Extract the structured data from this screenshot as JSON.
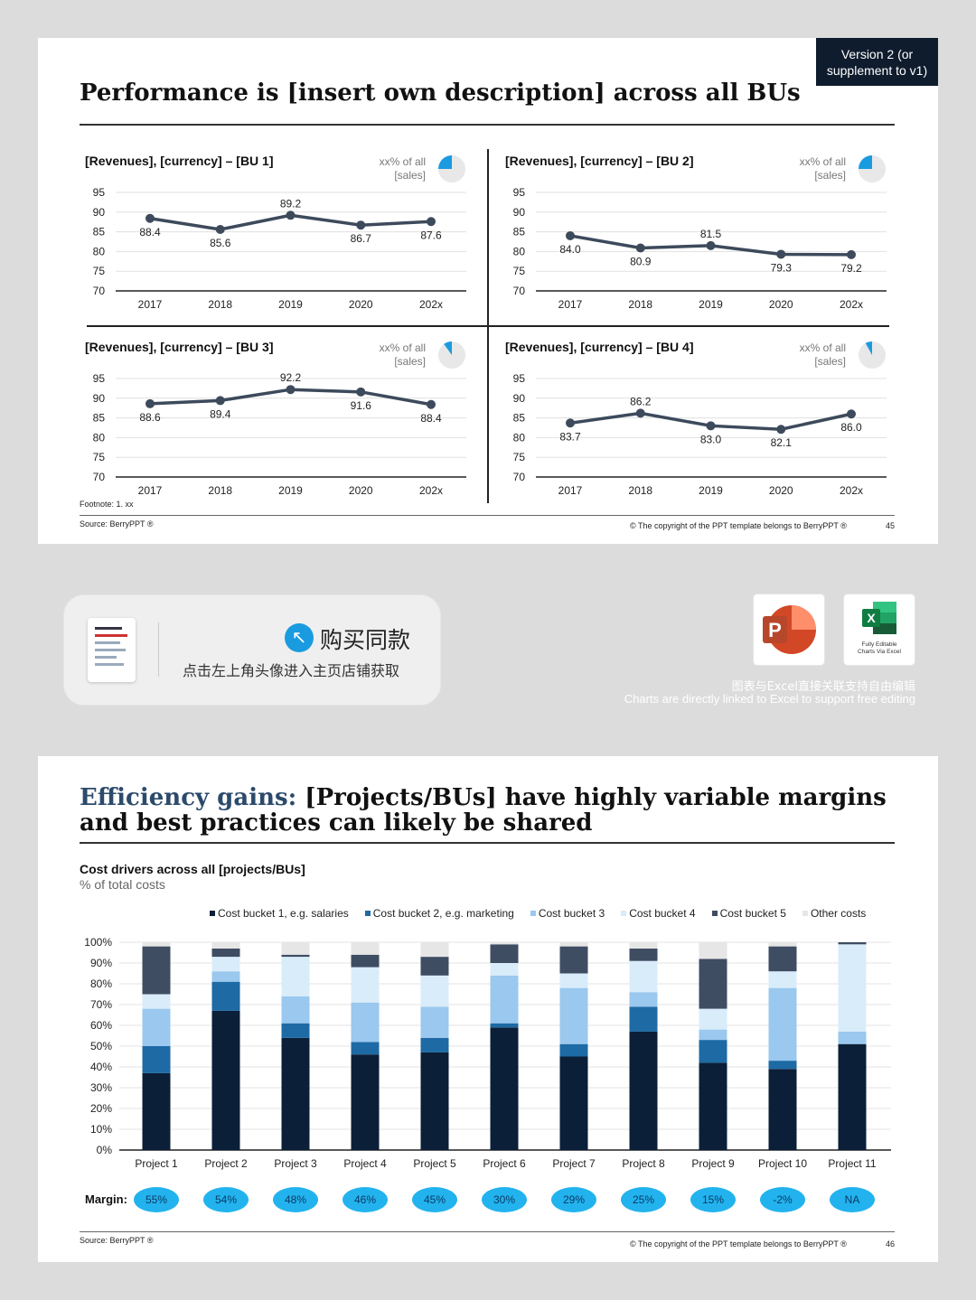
{
  "slide1": {
    "title": "Performance is [insert own description] across all BUs",
    "version_badge": "Version 2 (or supplement to v1)",
    "footnote": "Footnote: 1. xx",
    "source": "Source: BerryPPT ®",
    "copyright": "© The copyright of the PPT template belongs to BerryPPT ®",
    "page_number": "45",
    "panels": [
      {
        "title": "[Revenues], [currency] – [BU 1]",
        "share_line1": "xx% of all",
        "share_line2": "[sales]",
        "share_fraction": 0.25
      },
      {
        "title": "[Revenues], [currency] – [BU 2]",
        "share_line1": "xx% of all",
        "share_line2": "[sales]",
        "share_fraction": 0.25
      },
      {
        "title": "[Revenues], [currency] – [BU 3]",
        "share_line1": "xx% of all",
        "share_line2": "[sales]",
        "share_fraction": 0.1
      },
      {
        "title": "[Revenues], [currency] – [BU 4]",
        "share_line1": "xx% of all",
        "share_line2": "[sales]",
        "share_fraction": 0.08
      }
    ]
  },
  "promo": {
    "buy_title": "购买同款",
    "buy_icon": "arrow-up-left-icon",
    "buy_subtitle": "点击左上角头像进入主页店铺获取",
    "ppt_icon_letter": "P",
    "excel_icon_letter": "X",
    "excel_caption_line1": "Fully Editable",
    "excel_caption_line2": "Charts Via Excel",
    "caption_cn": "图表与Excel直接关联支持自由编辑",
    "caption_en": "Charts are directly linked to Excel to support free editing"
  },
  "slide2": {
    "title_highlight": "Efficiency gains:",
    "title_rest": " [Projects/BUs] have highly variable margins and best practices can likely be shared",
    "subtitle": "Cost drivers across all [projects/BUs]",
    "subtitle_unit": "% of total costs",
    "margin_label": "Margin:",
    "margins": [
      "55%",
      "54%",
      "48%",
      "46%",
      "45%",
      "30%",
      "29%",
      "25%",
      "15%",
      "-2%",
      "NA"
    ],
    "source": "Source: BerryPPT ®",
    "copyright": "© The copyright of the PPT template belongs to BerryPPT ®",
    "page_number": "46"
  },
  "colors": {
    "line": "#3d4a5c",
    "dark_navy": "#0b1f38",
    "mid_blue": "#1d6aa5",
    "light_blue": "#9ac8ee",
    "pale_blue": "#d9ecfa",
    "slate": "#3f4d63",
    "light_grey": "#e6e6e6",
    "pie_blue": "#1a9be0",
    "bubble": "#22b3ee",
    "title_blue": "#2c4a6b"
  },
  "chart_data": [
    {
      "type": "line",
      "title": "[Revenues], [currency] – [BU 1]",
      "categories": [
        "2017",
        "2018",
        "2019",
        "2020",
        "202x"
      ],
      "values": [
        88.4,
        85.6,
        89.2,
        86.7,
        87.6
      ],
      "labels": [
        "88.4",
        "85.6",
        "89.2",
        "86.7",
        "87.6"
      ],
      "yticks": [
        "95",
        "90",
        "85",
        "80",
        "75",
        "70"
      ],
      "ylim": [
        70,
        95
      ]
    },
    {
      "type": "line",
      "title": "[Revenues], [currency] – [BU 2]",
      "categories": [
        "2017",
        "2018",
        "2019",
        "2020",
        "202x"
      ],
      "values": [
        84.0,
        80.9,
        81.5,
        79.3,
        79.2
      ],
      "labels": [
        "84.0",
        "80.9",
        "81.5",
        "79.3",
        "79.2"
      ],
      "yticks": [
        "95",
        "90",
        "85",
        "80",
        "75",
        "70"
      ],
      "ylim": [
        70,
        95
      ]
    },
    {
      "type": "line",
      "title": "[Revenues], [currency] – [BU 3]",
      "categories": [
        "2017",
        "2018",
        "2019",
        "2020",
        "202x"
      ],
      "values": [
        88.6,
        89.4,
        92.2,
        91.6,
        88.4
      ],
      "labels": [
        "88.6",
        "89.4",
        "92.2",
        "91.6",
        "88.4"
      ],
      "yticks": [
        "95",
        "90",
        "85",
        "80",
        "75",
        "70"
      ],
      "ylim": [
        70,
        95
      ]
    },
    {
      "type": "line",
      "title": "[Revenues], [currency] – [BU 4]",
      "categories": [
        "2017",
        "2018",
        "2019",
        "2020",
        "202x"
      ],
      "values": [
        83.7,
        86.2,
        83.0,
        82.1,
        86.0
      ],
      "labels": [
        "83.7",
        "86.2",
        "83.0",
        "82.1",
        "86.0"
      ],
      "yticks": [
        "95",
        "90",
        "85",
        "80",
        "75",
        "70"
      ],
      "ylim": [
        70,
        95
      ]
    },
    {
      "type": "bar",
      "stacked": true,
      "title": "Cost drivers across all [projects/BUs]",
      "categories": [
        "Project 1",
        "Project 2",
        "Project 3",
        "Project 4",
        "Project 5",
        "Project 6",
        "Project 7",
        "Project 8",
        "Project 9",
        "Project 10",
        "Project 11"
      ],
      "yticks": [
        "100%",
        "90%",
        "80%",
        "70%",
        "60%",
        "50%",
        "40%",
        "30%",
        "20%",
        "10%",
        "0%"
      ],
      "ylim": [
        0,
        100
      ],
      "series": [
        {
          "name": "Cost bucket 1, e.g. salaries",
          "values": [
            37,
            67,
            54,
            46,
            47,
            59,
            45,
            57,
            42,
            39,
            51
          ]
        },
        {
          "name": "Cost bucket 2, e.g. marketing",
          "values": [
            13,
            14,
            7,
            6,
            7,
            2,
            6,
            12,
            11,
            4,
            0
          ]
        },
        {
          "name": "Cost bucket 3",
          "values": [
            18,
            5,
            13,
            19,
            15,
            23,
            27,
            7,
            5,
            35,
            6
          ]
        },
        {
          "name": "Cost bucket 4",
          "values": [
            7,
            7,
            19,
            17,
            15,
            6,
            7,
            15,
            10,
            8,
            42
          ]
        },
        {
          "name": "Cost bucket 5",
          "values": [
            23,
            4,
            1,
            6,
            9,
            9,
            13,
            6,
            24,
            12,
            1
          ]
        },
        {
          "name": "Other costs",
          "values": [
            2,
            3,
            6,
            6,
            7,
            1,
            2,
            3,
            8,
            2,
            0
          ]
        }
      ]
    }
  ]
}
